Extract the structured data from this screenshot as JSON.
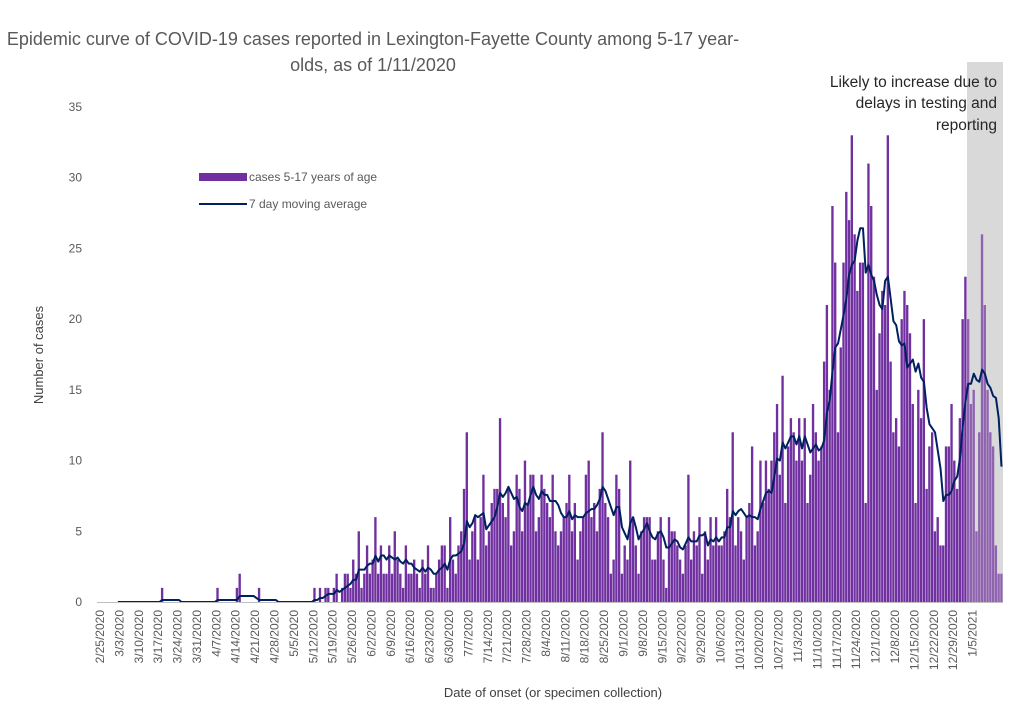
{
  "chart_data": {
    "type": "bar",
    "title_line1": "Epidemic curve of COVID-19 cases reported in Lexington-Fayette County among 5-17 year-",
    "title_line2": "olds, as of 1/11/2020",
    "xlabel": "Date of onset (or specimen collection)",
    "ylabel": "Number of cases",
    "ylim": [
      0,
      35
    ],
    "yticks": [
      0,
      5,
      10,
      15,
      20,
      25,
      30,
      35
    ],
    "grid": false,
    "legend_position": "top-left",
    "legend": [
      {
        "label": "cases 5-17 years of age",
        "type": "bar",
        "color": "#7030A0"
      },
      {
        "label": "7 day moving average",
        "type": "line",
        "color": "#002060"
      }
    ],
    "annotation": {
      "lines": [
        "Likely to increase due to",
        "delays in testing and",
        "reporting"
      ],
      "shaded_from": "1/3/2021",
      "shaded_color": "#D9D9D9"
    },
    "start_date": "2/25/2020",
    "xtick_labels": [
      "2/25/2020",
      "3/3/2020",
      "3/10/2020",
      "3/17/2020",
      "3/24/2020",
      "3/31/2020",
      "4/7/2020",
      "4/14/2020",
      "4/21/2020",
      "4/28/2020",
      "5/5/2020",
      "5/12/2020",
      "5/19/2020",
      "5/26/2020",
      "6/2/2020",
      "6/9/2020",
      "6/16/2020",
      "6/23/2020",
      "6/30/2020",
      "7/7/2020",
      "7/14/2020",
      "7/21/2020",
      "7/28/2020",
      "8/4/2020",
      "8/11/2020",
      "8/18/2020",
      "8/25/2020",
      "9/1/2020",
      "9/8/2020",
      "9/15/2020",
      "9/22/2020",
      "9/29/2020",
      "10/6/2020",
      "10/13/2020",
      "10/20/2020",
      "10/27/2020",
      "11/3/2020",
      "11/10/2020",
      "11/17/2020",
      "11/24/2020",
      "12/1/2020",
      "12/8/2020",
      "12/15/2020",
      "12/22/2020",
      "12/29/2020",
      "1/5/2021"
    ],
    "series": [
      {
        "name": "cases 5-17 years of age",
        "values": [
          0,
          0,
          0,
          0,
          0,
          0,
          0,
          0,
          0,
          0,
          0,
          0,
          0,
          0,
          0,
          0,
          0,
          0,
          0,
          0,
          0,
          0,
          1,
          0,
          0,
          0,
          0,
          0,
          0,
          0,
          0,
          0,
          0,
          0,
          0,
          0,
          0,
          0,
          0,
          0,
          0,
          0,
          1,
          0,
          0,
          0,
          0,
          0,
          0,
          1,
          2,
          0,
          0,
          0,
          0,
          0,
          0,
          1,
          0,
          0,
          0,
          0,
          0,
          0,
          0,
          0,
          0,
          0,
          0,
          0,
          0,
          0,
          0,
          0,
          0,
          0,
          0,
          1,
          0,
          1,
          0,
          1,
          1,
          0,
          1,
          2,
          0,
          1,
          2,
          2,
          1,
          3,
          2,
          5,
          1,
          2,
          4,
          2,
          3,
          6,
          2,
          4,
          2,
          2,
          4,
          2,
          5,
          3,
          2,
          1,
          4,
          2,
          2,
          3,
          2,
          1,
          3,
          2,
          4,
          1,
          1,
          2,
          3,
          4,
          4,
          1,
          6,
          3,
          2,
          4,
          5,
          8,
          12,
          3,
          5,
          6,
          3,
          6,
          9,
          4,
          5,
          7,
          8,
          8,
          13,
          7,
          6,
          8,
          4,
          5,
          9,
          8,
          5,
          10,
          7,
          9,
          9,
          5,
          6,
          9,
          8,
          7,
          6,
          9,
          5,
          4,
          5,
          6,
          7,
          9,
          5,
          7,
          3,
          5,
          6,
          9,
          10,
          6,
          7,
          5,
          8,
          12,
          7,
          6,
          2,
          3,
          9,
          8,
          2,
          4,
          3,
          10,
          6,
          4,
          2,
          5,
          6,
          6,
          6,
          3,
          3,
          5,
          6,
          3,
          1,
          6,
          5,
          5,
          4,
          3,
          2,
          4,
          9,
          3,
          5,
          4,
          6,
          2,
          5,
          3,
          6,
          4,
          6,
          4,
          4,
          5,
          8,
          6,
          12,
          4,
          6,
          5,
          3,
          6,
          7,
          11,
          4,
          5,
          10,
          7,
          10,
          8,
          10,
          12,
          14,
          9,
          16,
          7,
          11,
          13,
          12,
          10,
          13,
          10,
          13,
          7,
          9,
          14,
          12,
          10,
          11,
          17,
          21,
          15,
          28,
          24,
          12,
          18,
          24,
          29,
          27,
          33,
          26,
          22,
          24,
          24,
          7,
          31,
          28,
          23,
          15,
          19,
          22,
          21,
          33,
          17,
          12,
          13,
          11,
          20,
          22,
          21,
          19,
          14,
          7,
          15,
          13,
          20,
          8,
          11,
          12,
          5,
          6,
          4,
          4,
          11,
          11,
          14,
          10,
          8,
          13,
          20,
          23,
          20,
          14,
          15,
          5,
          12,
          26,
          21,
          15,
          12,
          11,
          4,
          2,
          2
        ]
      },
      {
        "name": "7 day moving average",
        "type": "line",
        "note": "trailing 7-day mean of the daily case counts"
      }
    ]
  }
}
